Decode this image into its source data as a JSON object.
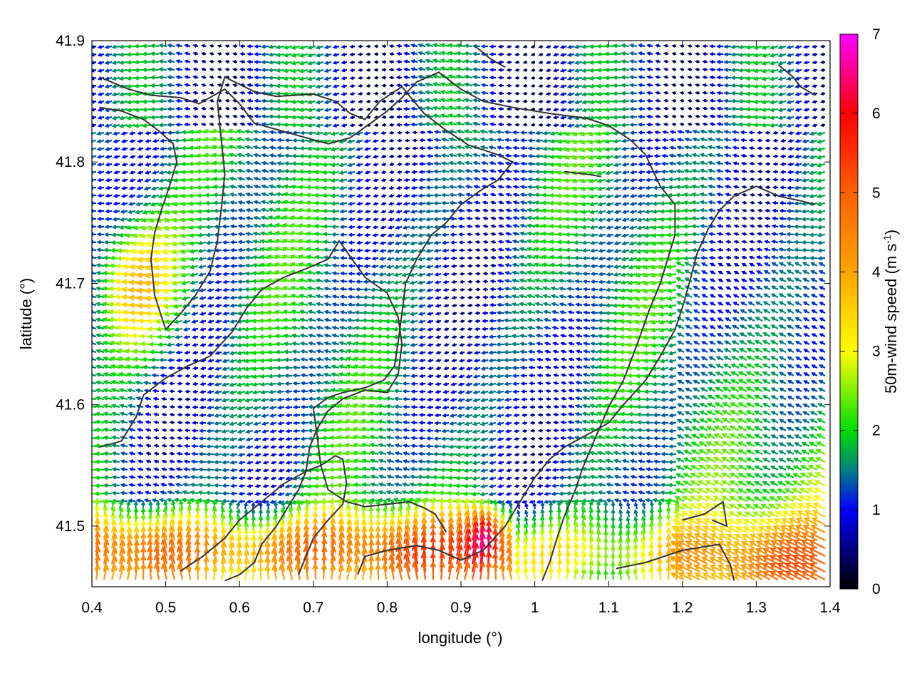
{
  "chart_data": {
    "type": "vector-field",
    "xlabel": "longitude (°)",
    "ylabel": "latitude (°)",
    "colorbar_label_main": "50m-wind speed (m s",
    "colorbar_label_sup": "-1",
    "colorbar_label_end": ")",
    "xlim": [
      0.4,
      1.4
    ],
    "ylim": [
      41.45,
      41.9
    ],
    "xticks": [
      0.4,
      0.5,
      0.6,
      0.7,
      0.8,
      0.9,
      1.0,
      1.1,
      1.2,
      1.3,
      1.4
    ],
    "xtick_labels": [
      "0.4",
      "0.5",
      "0.6",
      "0.7",
      "0.8",
      "0.9",
      "1",
      "1.1",
      "1.2",
      "1.3",
      "1.4"
    ],
    "yticks": [
      41.5,
      41.6,
      41.7,
      41.8,
      41.9
    ],
    "ytick_labels": [
      "41.5",
      "41.6",
      "41.7",
      "41.8",
      "41.9"
    ],
    "colorbar_range": [
      0,
      7
    ],
    "colorbar_ticks": [
      "0",
      "1",
      "2",
      "3",
      "4",
      "5",
      "6",
      "7"
    ],
    "colormap": [
      {
        "v": 0,
        "color": "#000000"
      },
      {
        "v": 1,
        "color": "#0000ff"
      },
      {
        "v": 1.5,
        "color": "#008080"
      },
      {
        "v": 2,
        "color": "#00dd00"
      },
      {
        "v": 3,
        "color": "#ffff00"
      },
      {
        "v": 4,
        "color": "#ffa500"
      },
      {
        "v": 5,
        "color": "#ff6000"
      },
      {
        "v": 6,
        "color": "#ff0000"
      },
      {
        "v": 7,
        "color": "#ff00ff"
      }
    ],
    "grid": true,
    "contour_color": "#333333",
    "contours": [
      [
        [
          0.41,
          41.87
        ],
        [
          0.45,
          41.86
        ],
        [
          0.48,
          41.855
        ],
        [
          0.52,
          41.853
        ],
        [
          0.545,
          41.848
        ],
        [
          0.58,
          41.86
        ],
        [
          0.6,
          41.848
        ],
        [
          0.62,
          41.832
        ],
        [
          0.655,
          41.826
        ],
        [
          0.69,
          41.82
        ],
        [
          0.72,
          41.815
        ],
        [
          0.75,
          41.82
        ],
        [
          0.78,
          41.833
        ],
        [
          0.8,
          41.842
        ],
        [
          0.82,
          41.853
        ],
        [
          0.84,
          41.866
        ],
        [
          0.87,
          41.874
        ],
        [
          0.9,
          41.86
        ],
        [
          0.93,
          41.85
        ],
        [
          0.97,
          41.845
        ],
        [
          1.02,
          41.84
        ],
        [
          1.07,
          41.836
        ],
        [
          1.1,
          41.83
        ],
        [
          1.13,
          41.818
        ],
        [
          1.15,
          41.806
        ],
        [
          1.17,
          41.78
        ],
        [
          1.19,
          41.765
        ],
        [
          1.19,
          41.74
        ],
        [
          1.18,
          41.72
        ],
        [
          1.17,
          41.7
        ],
        [
          1.155,
          41.678
        ],
        [
          1.14,
          41.652
        ],
        [
          1.12,
          41.62
        ],
        [
          1.1,
          41.598
        ],
        [
          1.08,
          41.57
        ],
        [
          1.065,
          41.548
        ],
        [
          1.055,
          41.53
        ],
        [
          1.04,
          41.508
        ],
        [
          1.03,
          41.49
        ],
        [
          1.02,
          41.47
        ],
        [
          1.01,
          41.455
        ]
      ],
      [
        [
          0.41,
          41.845
        ],
        [
          0.44,
          41.842
        ],
        [
          0.47,
          41.835
        ],
        [
          0.49,
          41.826
        ],
        [
          0.51,
          41.815
        ],
        [
          0.515,
          41.8
        ],
        [
          0.505,
          41.78
        ],
        [
          0.495,
          41.762
        ],
        [
          0.485,
          41.742
        ],
        [
          0.48,
          41.72
        ],
        [
          0.485,
          41.69
        ],
        [
          0.5,
          41.662
        ],
        [
          0.52,
          41.675
        ],
        [
          0.54,
          41.69
        ],
        [
          0.56,
          41.71
        ],
        [
          0.57,
          41.735
        ],
        [
          0.575,
          41.76
        ],
        [
          0.58,
          41.79
        ],
        [
          0.575,
          41.82
        ],
        [
          0.57,
          41.85
        ],
        [
          0.58,
          41.87
        ],
        [
          0.62,
          41.858
        ],
        [
          0.65,
          41.854
        ],
        [
          0.7,
          41.856
        ],
        [
          0.73,
          41.85
        ],
        [
          0.75,
          41.84
        ],
        [
          0.77,
          41.835
        ],
        [
          0.79,
          41.85
        ],
        [
          0.82,
          41.862
        ],
        [
          0.85,
          41.84
        ],
        [
          0.88,
          41.826
        ],
        [
          0.91,
          41.814
        ],
        [
          0.95,
          41.806
        ],
        [
          0.97,
          41.8
        ],
        [
          0.95,
          41.785
        ],
        [
          0.93,
          41.778
        ],
        [
          0.9,
          41.765
        ],
        [
          0.88,
          41.75
        ],
        [
          0.86,
          41.74
        ],
        [
          0.84,
          41.72
        ],
        [
          0.825,
          41.7
        ],
        [
          0.82,
          41.675
        ],
        [
          0.815,
          41.652
        ],
        [
          0.81,
          41.632
        ],
        [
          0.795,
          41.62
        ],
        [
          0.77,
          41.614
        ],
        [
          0.74,
          41.61
        ],
        [
          0.72,
          41.606
        ],
        [
          0.7,
          41.597
        ],
        [
          0.705,
          41.575
        ],
        [
          0.71,
          41.55
        ],
        [
          0.72,
          41.53
        ],
        [
          0.745,
          41.52
        ],
        [
          0.77,
          41.516
        ],
        [
          0.8,
          41.518
        ],
        [
          0.83,
          41.52
        ],
        [
          0.85,
          41.515
        ],
        [
          0.865,
          41.51
        ],
        [
          0.88,
          41.495
        ]
      ],
      [
        [
          0.41,
          41.565
        ],
        [
          0.44,
          41.57
        ],
        [
          0.46,
          41.59
        ],
        [
          0.47,
          41.608
        ],
        [
          0.5,
          41.622
        ],
        [
          0.53,
          41.632
        ],
        [
          0.56,
          41.64
        ],
        [
          0.59,
          41.66
        ],
        [
          0.61,
          41.68
        ],
        [
          0.63,
          41.695
        ],
        [
          0.66,
          41.705
        ],
        [
          0.69,
          41.712
        ],
        [
          0.72,
          41.72
        ],
        [
          0.735,
          41.735
        ],
        [
          0.75,
          41.722
        ],
        [
          0.77,
          41.705
        ],
        [
          0.8,
          41.692
        ],
        [
          0.815,
          41.672
        ],
        [
          0.82,
          41.65
        ],
        [
          0.815,
          41.625
        ],
        [
          0.8,
          41.61
        ],
        [
          0.77,
          41.612
        ],
        [
          0.74,
          41.605
        ],
        [
          0.72,
          41.595
        ],
        [
          0.705,
          41.58
        ],
        [
          0.695,
          41.565
        ],
        [
          0.69,
          41.545
        ],
        [
          0.68,
          41.53
        ],
        [
          0.665,
          41.515
        ],
        [
          0.65,
          41.5
        ],
        [
          0.63,
          41.485
        ],
        [
          0.62,
          41.47
        ],
        [
          0.6,
          41.46
        ],
        [
          0.58,
          41.455
        ]
      ],
      [
        [
          0.52,
          41.463
        ],
        [
          0.55,
          41.475
        ],
        [
          0.58,
          41.49
        ],
        [
          0.6,
          41.505
        ],
        [
          0.63,
          41.52
        ],
        [
          0.66,
          41.535
        ],
        [
          0.69,
          41.545
        ],
        [
          0.71,
          41.55
        ],
        [
          0.73,
          41.558
        ],
        [
          0.74,
          41.555
        ],
        [
          0.745,
          41.535
        ],
        [
          0.74,
          41.518
        ],
        [
          0.72,
          41.505
        ],
        [
          0.7,
          41.49
        ],
        [
          0.69,
          41.475
        ],
        [
          0.68,
          41.46
        ]
      ],
      [
        [
          0.76,
          41.46
        ],
        [
          0.77,
          41.475
        ],
        [
          0.8,
          41.48
        ],
        [
          0.84,
          41.484
        ],
        [
          0.87,
          41.48
        ],
        [
          0.9,
          41.472
        ],
        [
          0.93,
          41.48
        ],
        [
          0.96,
          41.5
        ],
        [
          0.98,
          41.52
        ],
        [
          1.0,
          41.54
        ],
        [
          1.02,
          41.555
        ],
        [
          1.04,
          41.565
        ],
        [
          1.07,
          41.575
        ],
        [
          1.1,
          41.585
        ],
        [
          1.12,
          41.6
        ],
        [
          1.15,
          41.62
        ],
        [
          1.17,
          41.64
        ],
        [
          1.19,
          41.662
        ],
        [
          1.2,
          41.68
        ],
        [
          1.21,
          41.702
        ],
        [
          1.22,
          41.725
        ],
        [
          1.235,
          41.745
        ],
        [
          1.25,
          41.76
        ],
        [
          1.27,
          41.772
        ],
        [
          1.3,
          41.78
        ],
        [
          1.33,
          41.772
        ],
        [
          1.36,
          41.768
        ],
        [
          1.38,
          41.765
        ]
      ],
      [
        [
          1.33,
          41.88
        ],
        [
          1.35,
          41.87
        ],
        [
          1.36,
          41.862
        ],
        [
          1.38,
          41.855
        ]
      ],
      [
        [
          1.2,
          41.505
        ],
        [
          1.23,
          41.51
        ],
        [
          1.255,
          41.52
        ],
        [
          1.26,
          41.5
        ],
        [
          1.24,
          41.505
        ]
      ],
      [
        [
          1.11,
          41.465
        ],
        [
          1.15,
          41.47
        ],
        [
          1.2,
          41.48
        ],
        [
          1.25,
          41.485
        ],
        [
          1.265,
          41.468
        ],
        [
          1.27,
          41.455
        ]
      ],
      [
        [
          0.92,
          41.895
        ],
        [
          0.94,
          41.885
        ],
        [
          0.96,
          41.878
        ]
      ],
      [
        [
          1.04,
          41.792
        ],
        [
          1.07,
          41.79
        ],
        [
          1.09,
          41.788
        ]
      ]
    ]
  }
}
